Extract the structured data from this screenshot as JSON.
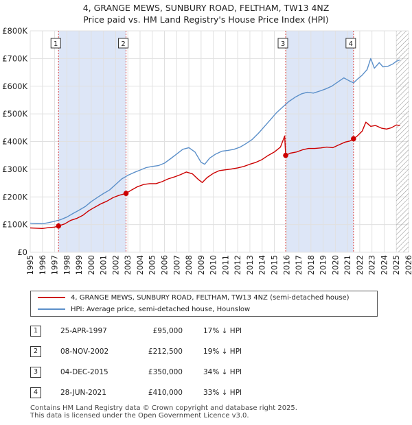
{
  "title": {
    "line1": "4, GRANGE MEWS, SUNBURY ROAD, FELTHAM, TW13 4NZ",
    "line2": "Price paid vs. HM Land Registry's House Price Index (HPI)"
  },
  "chart_data": {
    "type": "line",
    "title": "4, GRANGE MEWS, SUNBURY ROAD, FELTHAM, TW13 4NZ — Price paid vs. HM Land Registry's House Price Index (HPI)",
    "xlabel": "",
    "ylabel": "",
    "xlim": [
      1995,
      2026
    ],
    "ylim": [
      0,
      800000
    ],
    "x_ticks": [
      "1995",
      "1996",
      "1997",
      "1998",
      "1999",
      "2000",
      "2001",
      "2002",
      "2003",
      "2004",
      "2005",
      "2006",
      "2007",
      "2008",
      "2009",
      "2010",
      "2011",
      "2012",
      "2013",
      "2014",
      "2015",
      "2016",
      "2017",
      "2018",
      "2019",
      "2020",
      "2021",
      "2022",
      "2023",
      "2024",
      "2025",
      "2026"
    ],
    "y_ticks": [
      {
        "value": 0,
        "label": "£0"
      },
      {
        "value": 100000,
        "label": "£100K"
      },
      {
        "value": 200000,
        "label": "£200K"
      },
      {
        "value": 300000,
        "label": "£300K"
      },
      {
        "value": 400000,
        "label": "£400K"
      },
      {
        "value": 500000,
        "label": "£500K"
      },
      {
        "value": 600000,
        "label": "£600K"
      },
      {
        "value": 700000,
        "label": "£700K"
      },
      {
        "value": 800000,
        "label": "£800K"
      }
    ],
    "grid": true,
    "colors": {
      "property": "#cc0000",
      "hpi": "#5b8fc9",
      "shade": "#dde6f7",
      "hatch": "#888888",
      "marker_line": "#dd4444"
    },
    "hatched_from": 2025.0,
    "series": [
      {
        "name": "4, GRANGE MEWS, SUNBURY ROAD, FELTHAM, TW13 4NZ (semi-detached house)",
        "color": "#cc0000",
        "x": [
          1995.0,
          1995.5,
          1996.0,
          1996.5,
          1997.0,
          1997.32,
          1997.8,
          1998.3,
          1998.8,
          1999.3,
          1999.8,
          2000.3,
          2000.8,
          2001.3,
          2001.8,
          2002.3,
          2002.85,
          2003.3,
          2003.8,
          2004.3,
          2004.8,
          2005.3,
          2005.8,
          2006.3,
          2006.8,
          2007.3,
          2007.8,
          2008.3,
          2008.8,
          2009.1,
          2009.5,
          2010.0,
          2010.5,
          2011.0,
          2011.5,
          2012.0,
          2012.5,
          2013.0,
          2013.5,
          2014.0,
          2014.5,
          2015.0,
          2015.5,
          2015.85,
          2015.93,
          2016.3,
          2016.8,
          2017.3,
          2017.8,
          2018.3,
          2018.8,
          2019.3,
          2019.8,
          2020.3,
          2020.8,
          2021.2,
          2021.49,
          2021.8,
          2022.2,
          2022.5,
          2022.9,
          2023.3,
          2023.8,
          2024.2,
          2024.6,
          2025.0,
          2025.3
        ],
        "values": [
          88000,
          87000,
          86000,
          89000,
          91000,
          95000,
          102000,
          115000,
          122000,
          133000,
          150000,
          163000,
          175000,
          185000,
          198000,
          206000,
          212500,
          225000,
          237000,
          245000,
          248000,
          248000,
          255000,
          265000,
          272000,
          280000,
          290000,
          283000,
          262000,
          252000,
          270000,
          285000,
          295000,
          298000,
          301000,
          305000,
          310000,
          318000,
          325000,
          335000,
          350000,
          362000,
          380000,
          420000,
          350000,
          358000,
          362000,
          370000,
          375000,
          375000,
          377000,
          380000,
          378000,
          388000,
          398000,
          402000,
          410000,
          420000,
          438000,
          470000,
          455000,
          458000,
          448000,
          445000,
          450000,
          460000,
          458000
        ]
      },
      {
        "name": "HPI: Average price, semi-detached house, Hounslow",
        "color": "#5b8fc9",
        "x": [
          1995.0,
          1995.5,
          1996.0,
          1996.5,
          1997.0,
          1997.5,
          1998.0,
          1998.5,
          1999.0,
          1999.5,
          2000.0,
          2000.5,
          2001.0,
          2001.5,
          2002.0,
          2002.5,
          2003.0,
          2003.5,
          2004.0,
          2004.5,
          2005.0,
          2005.5,
          2006.0,
          2006.5,
          2007.0,
          2007.5,
          2008.0,
          2008.5,
          2009.0,
          2009.3,
          2009.7,
          2010.2,
          2010.7,
          2011.2,
          2011.7,
          2012.2,
          2012.7,
          2013.2,
          2013.7,
          2014.2,
          2014.7,
          2015.2,
          2015.7,
          2016.2,
          2016.7,
          2017.2,
          2017.7,
          2018.2,
          2018.7,
          2019.2,
          2019.7,
          2020.2,
          2020.7,
          2021.2,
          2021.5,
          2021.8,
          2022.2,
          2022.6,
          2022.9,
          2023.2,
          2023.6,
          2023.9,
          2024.3,
          2024.7,
          2025.0,
          2025.3
        ],
        "values": [
          105000,
          104000,
          103000,
          107000,
          112000,
          118000,
          127000,
          140000,
          152000,
          165000,
          183000,
          198000,
          212000,
          225000,
          245000,
          265000,
          278000,
          288000,
          297000,
          306000,
          310000,
          313000,
          322000,
          338000,
          355000,
          372000,
          378000,
          362000,
          325000,
          318000,
          340000,
          355000,
          365000,
          368000,
          372000,
          380000,
          393000,
          408000,
          430000,
          455000,
          480000,
          505000,
          525000,
          545000,
          560000,
          572000,
          578000,
          575000,
          582000,
          590000,
          600000,
          615000,
          630000,
          618000,
          612000,
          625000,
          640000,
          660000,
          700000,
          665000,
          685000,
          670000,
          672000,
          680000,
          690000,
          695000
        ]
      }
    ],
    "sales": [
      {
        "number": "1",
        "year": 1997.32,
        "price_value": 95000,
        "date": "25-APR-1997",
        "price": "£95,000",
        "hpi": "17% ↓ HPI"
      },
      {
        "number": "2",
        "year": 2002.85,
        "price_value": 212500,
        "date": "08-NOV-2002",
        "price": "£212,500",
        "hpi": "19% ↓ HPI"
      },
      {
        "number": "3",
        "year": 2015.93,
        "price_value": 350000,
        "date": "04-DEC-2015",
        "price": "£350,000",
        "hpi": "34% ↓ HPI"
      },
      {
        "number": "4",
        "year": 2021.49,
        "price_value": 410000,
        "date": "28-JUN-2021",
        "price": "£410,000",
        "hpi": "33% ↓ HPI"
      }
    ],
    "shaded_ranges": [
      [
        1997.32,
        2002.85
      ],
      [
        2015.93,
        2021.49
      ]
    ]
  },
  "legend": {
    "property": "4, GRANGE MEWS, SUNBURY ROAD, FELTHAM, TW13 4NZ (semi-detached house)",
    "hpi": "HPI: Average price, semi-detached house, Hounslow"
  },
  "footer": {
    "line1": "Contains HM Land Registry data © Crown copyright and database right 2025.",
    "line2": "This data is licensed under the Open Government Licence v3.0."
  }
}
